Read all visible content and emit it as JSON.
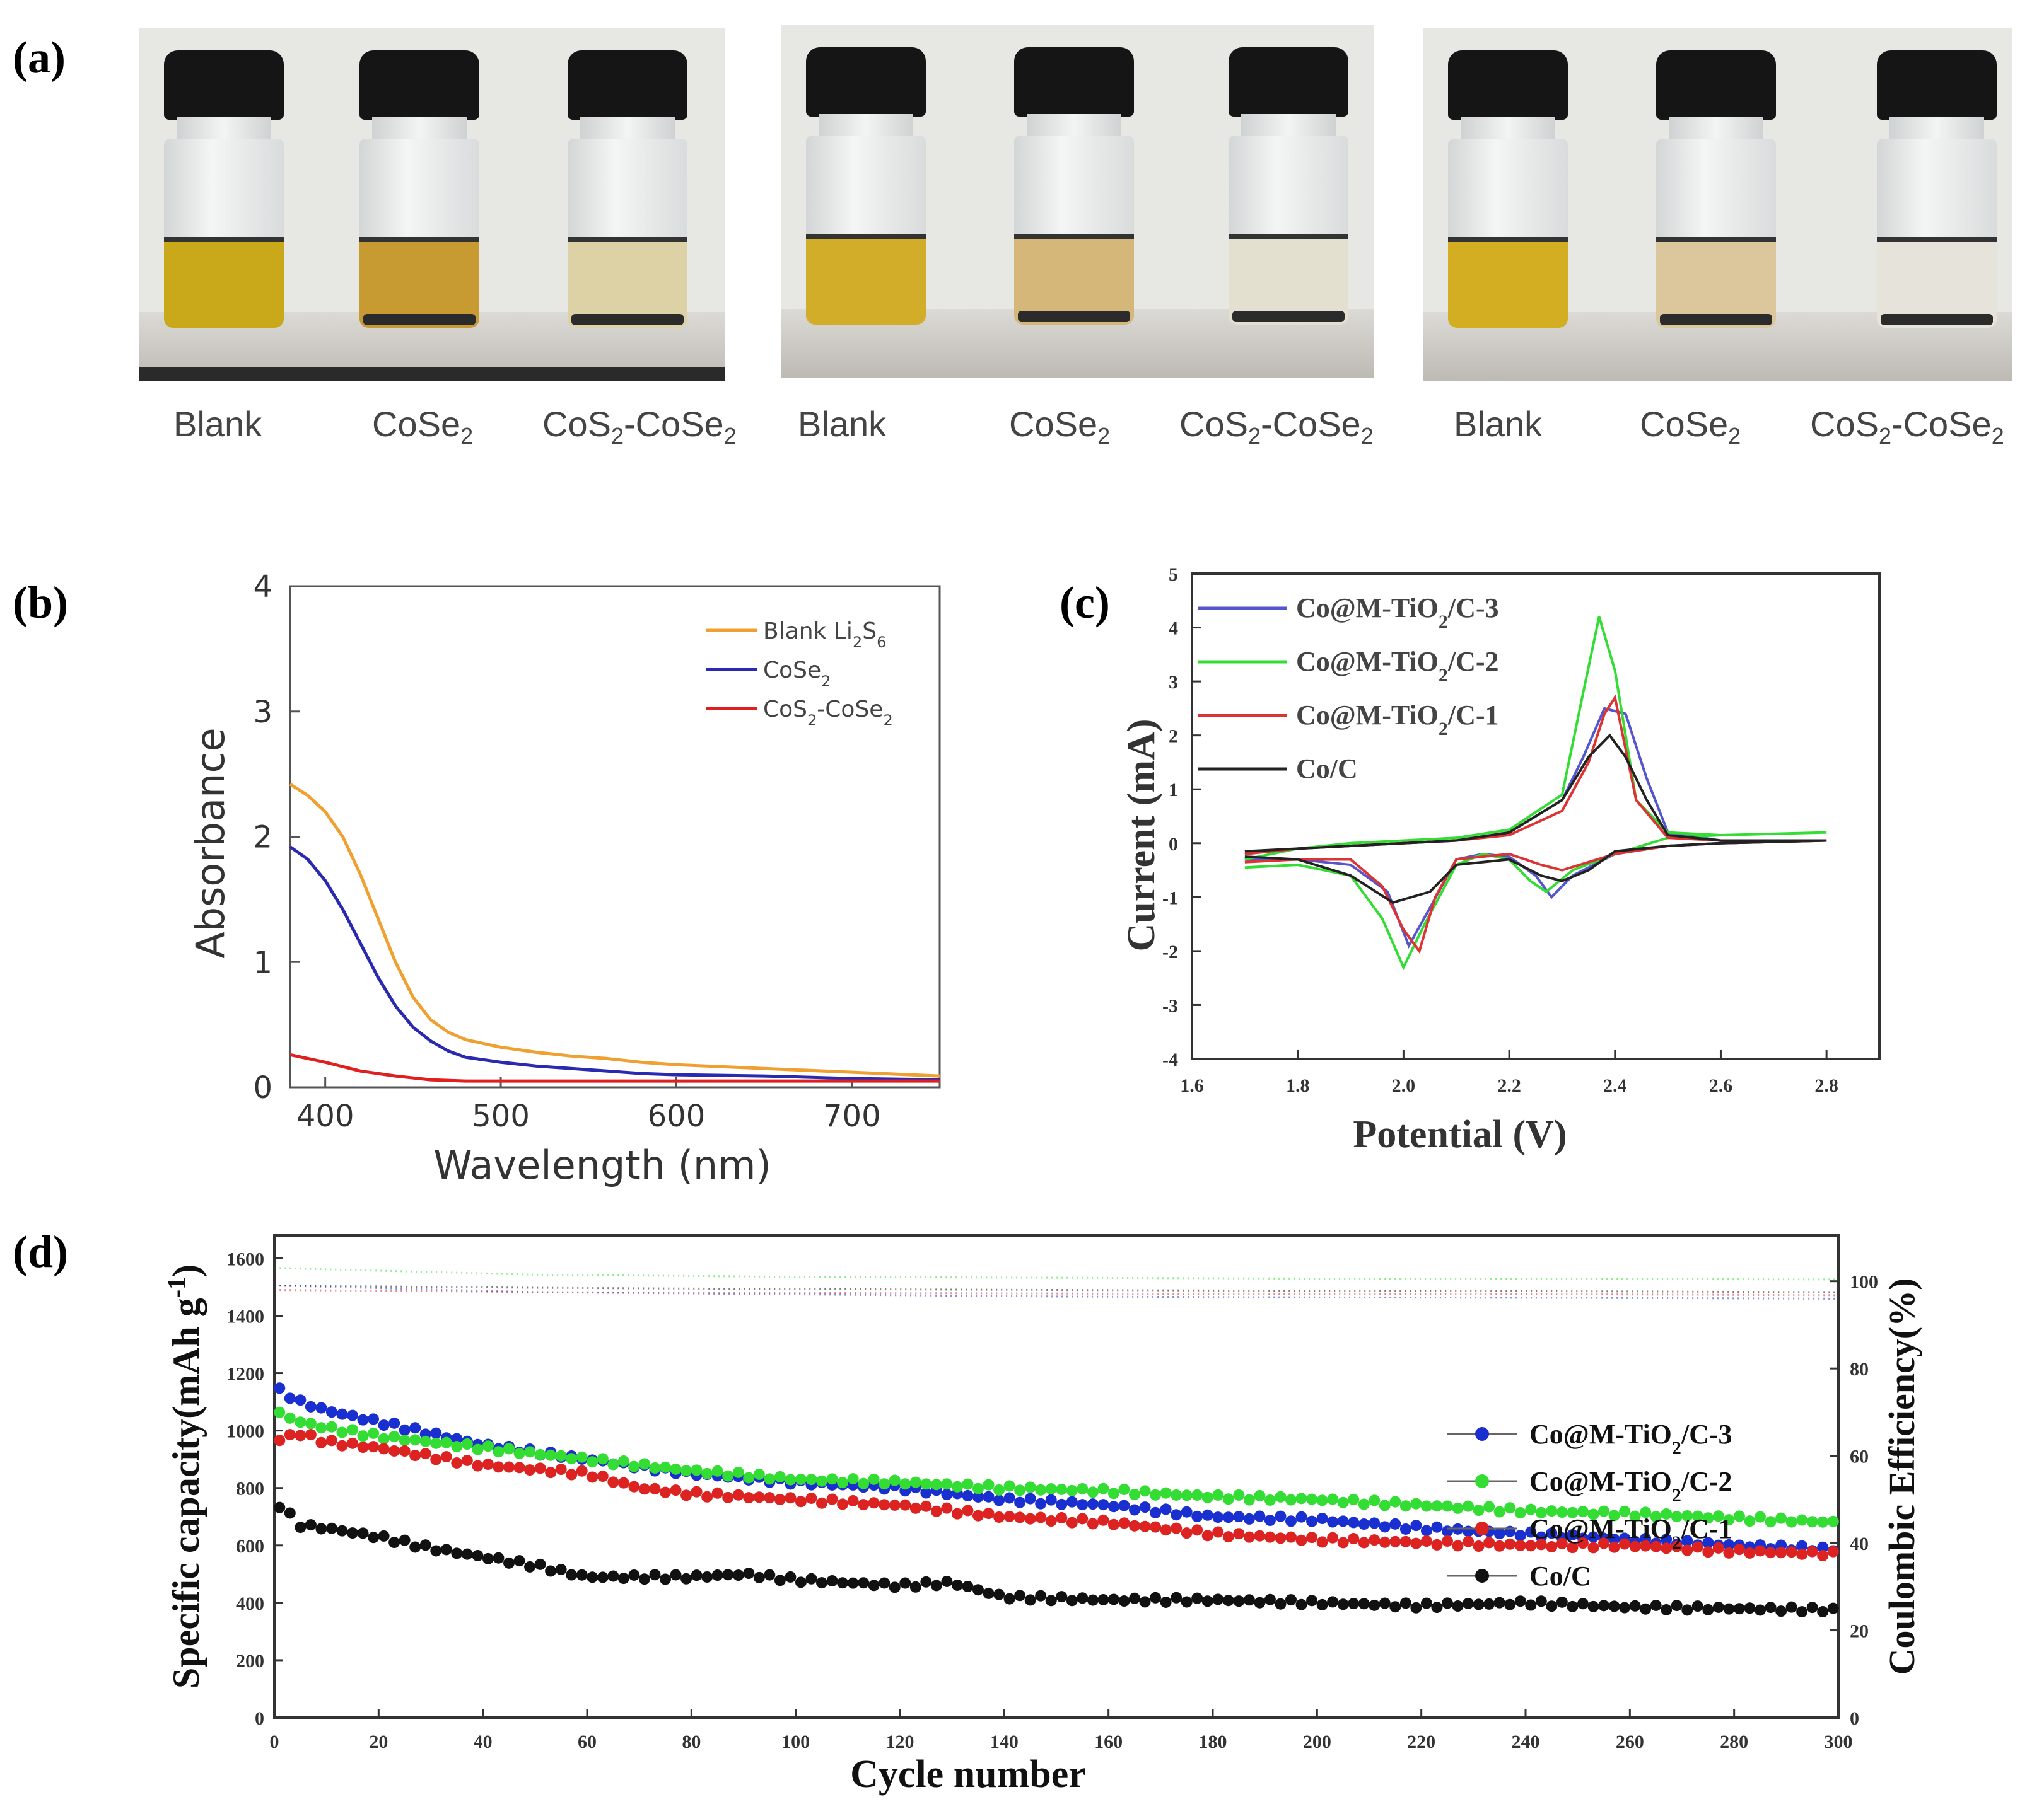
{
  "panel_labels": {
    "a": "(a)",
    "b": "(b)",
    "c": "(c)",
    "d": "(d)"
  },
  "panel_a": {
    "photos": [
      {
        "vials": [
          {
            "label": "Blank",
            "sub": "",
            "tail": "",
            "liquid_color": "#c9a81a",
            "sediment": false
          },
          {
            "label": "CoSe",
            "sub": "2",
            "tail": "",
            "liquid_color": "#c79b32",
            "sediment": true
          },
          {
            "label": "CoS",
            "sub": "2",
            "tail": "-CoSe",
            "sub2": "2",
            "liquid_color": "#ddd2a6",
            "sediment": true
          }
        ]
      },
      {
        "vials": [
          {
            "label": "Blank",
            "sub": "",
            "tail": "",
            "liquid_color": "#d2ad2a",
            "sediment": false
          },
          {
            "label": "CoSe",
            "sub": "2",
            "tail": "",
            "liquid_color": "#d5b77a",
            "sediment": true
          },
          {
            "label": "CoS",
            "sub": "2",
            "tail": "-CoSe",
            "sub2": "2",
            "liquid_color": "#e4e0cf",
            "sediment": true
          }
        ]
      },
      {
        "vials": [
          {
            "label": "Blank",
            "sub": "",
            "tail": "",
            "liquid_color": "#d3ae22",
            "sediment": false
          },
          {
            "label": "CoSe",
            "sub": "2",
            "tail": "",
            "liquid_color": "#dcc79d",
            "sediment": true
          },
          {
            "label": "CoS",
            "sub": "2",
            "tail": "-CoSe",
            "sub2": "2",
            "liquid_color": "#e6e4da",
            "sediment": true
          }
        ]
      }
    ]
  },
  "chart_data": [
    {
      "id": "b",
      "type": "line",
      "xlabel": "Wavelength (nm)",
      "ylabel": "Absorbance",
      "xlim": [
        380,
        750
      ],
      "ylim": [
        0,
        4
      ],
      "xticks": [
        "400",
        "500",
        "600",
        "700"
      ],
      "xtick_values": [
        400,
        500,
        600,
        700
      ],
      "yticks": [
        "0",
        "1",
        "2",
        "3",
        "4"
      ],
      "ytick_values": [
        0,
        1,
        2,
        3,
        4
      ],
      "legend_position": "top-right",
      "series": [
        {
          "name": "Blank Li",
          "sub": "2",
          "mid": "S",
          "sub2": "6",
          "color": "#f0a030",
          "x": [
            380,
            390,
            400,
            410,
            420,
            430,
            440,
            450,
            460,
            470,
            480,
            500,
            520,
            540,
            560,
            580,
            600,
            650,
            700,
            750
          ],
          "y": [
            2.42,
            2.33,
            2.2,
            2.0,
            1.7,
            1.35,
            1.0,
            0.72,
            0.54,
            0.44,
            0.38,
            0.32,
            0.28,
            0.25,
            0.23,
            0.2,
            0.18,
            0.15,
            0.12,
            0.09
          ]
        },
        {
          "name": "CoSe",
          "sub": "2",
          "mid": "",
          "sub2": "",
          "color": "#2a2ab0",
          "x": [
            380,
            390,
            400,
            410,
            420,
            430,
            440,
            450,
            460,
            470,
            480,
            500,
            520,
            540,
            560,
            580,
            600,
            650,
            700,
            750
          ],
          "y": [
            1.92,
            1.82,
            1.65,
            1.42,
            1.15,
            0.88,
            0.65,
            0.48,
            0.37,
            0.29,
            0.24,
            0.2,
            0.17,
            0.15,
            0.13,
            0.11,
            0.1,
            0.09,
            0.07,
            0.06
          ]
        },
        {
          "name": "CoS",
          "sub": "2",
          "mid": "-CoSe",
          "sub2": "2",
          "color": "#e02020",
          "x": [
            380,
            400,
            420,
            440,
            460,
            480,
            500,
            550,
            600,
            650,
            700,
            750
          ],
          "y": [
            0.26,
            0.2,
            0.13,
            0.09,
            0.06,
            0.05,
            0.05,
            0.05,
            0.05,
            0.05,
            0.05,
            0.05
          ]
        }
      ]
    },
    {
      "id": "c",
      "type": "line",
      "xlabel": "Potential (V)",
      "ylabel": "Current (mA)",
      "xlim": [
        1.6,
        2.9
      ],
      "ylim": [
        -4,
        5
      ],
      "xticks": [
        "1.6",
        "1.8",
        "2.0",
        "2.2",
        "2.4",
        "2.6",
        "2.8"
      ],
      "xtick_values": [
        1.6,
        1.8,
        2.0,
        2.2,
        2.4,
        2.6,
        2.8
      ],
      "yticks": [
        "-4",
        "-3",
        "-2",
        "-1",
        "0",
        "1",
        "2",
        "3",
        "4",
        "5"
      ],
      "ytick_values": [
        -4,
        -3,
        -2,
        -1,
        0,
        1,
        2,
        3,
        4,
        5
      ],
      "legend_position": "top-left",
      "series": [
        {
          "name": "Co@M-TiO",
          "sub": "2",
          "tail": "/C-3",
          "color": "#5555cc",
          "x": [
            1.7,
            1.8,
            1.9,
            1.97,
            2.01,
            2.05,
            2.1,
            2.15,
            2.2,
            2.25,
            2.28,
            2.32,
            2.4,
            2.5,
            2.6,
            2.8,
            2.8,
            2.6,
            2.5,
            2.46,
            2.42,
            2.38,
            2.34,
            2.3,
            2.2,
            2.1,
            2.0,
            1.9,
            1.8,
            1.7
          ],
          "y": [
            -0.3,
            -0.3,
            -0.4,
            -0.9,
            -1.9,
            -1.2,
            -0.3,
            -0.2,
            -0.25,
            -0.6,
            -1.0,
            -0.6,
            -0.2,
            -0.05,
            0.0,
            0.05,
            0.05,
            0.05,
            0.2,
            1.2,
            2.4,
            2.5,
            1.6,
            0.8,
            0.2,
            0.05,
            0.0,
            -0.05,
            -0.1,
            -0.2
          ]
        },
        {
          "name": "Co@M-TiO",
          "sub": "2",
          "tail": "/C-2",
          "color": "#33dd33",
          "x": [
            1.7,
            1.8,
            1.9,
            1.96,
            2.0,
            2.04,
            2.1,
            2.15,
            2.2,
            2.24,
            2.27,
            2.32,
            2.4,
            2.5,
            2.6,
            2.8,
            2.8,
            2.6,
            2.5,
            2.44,
            2.4,
            2.37,
            2.34,
            2.3,
            2.2,
            2.1,
            2.0,
            1.9,
            1.8,
            1.7
          ],
          "y": [
            -0.45,
            -0.4,
            -0.6,
            -1.4,
            -2.3,
            -1.5,
            -0.4,
            -0.2,
            -0.3,
            -0.7,
            -0.9,
            -0.5,
            -0.2,
            0.1,
            0.15,
            0.2,
            0.2,
            0.15,
            0.2,
            0.8,
            3.2,
            4.2,
            2.8,
            0.9,
            0.25,
            0.1,
            0.05,
            0.0,
            -0.1,
            -0.3
          ]
        },
        {
          "name": "Co@M-TiO",
          "sub": "2",
          "tail": "/C-1",
          "color": "#dd3333",
          "x": [
            1.7,
            1.8,
            1.9,
            1.96,
            2.0,
            2.03,
            2.06,
            2.1,
            2.2,
            2.26,
            2.3,
            2.4,
            2.5,
            2.6,
            2.8,
            2.8,
            2.6,
            2.5,
            2.44,
            2.4,
            2.38,
            2.35,
            2.3,
            2.2,
            2.1,
            2.0,
            1.9,
            1.8,
            1.7
          ],
          "y": [
            -0.35,
            -0.3,
            -0.3,
            -0.8,
            -1.6,
            -2.0,
            -1.0,
            -0.3,
            -0.2,
            -0.4,
            -0.5,
            -0.2,
            -0.05,
            0.0,
            0.05,
            0.05,
            0.05,
            0.1,
            0.8,
            2.7,
            2.4,
            1.5,
            0.6,
            0.15,
            0.05,
            0.0,
            -0.05,
            -0.1,
            -0.2
          ]
        },
        {
          "name": "Co/C",
          "sub": "",
          "tail": "",
          "color": "#222222",
          "x": [
            1.7,
            1.8,
            1.9,
            1.98,
            2.05,
            2.1,
            2.2,
            2.26,
            2.3,
            2.35,
            2.4,
            2.5,
            2.6,
            2.8,
            2.8,
            2.6,
            2.5,
            2.46,
            2.42,
            2.39,
            2.35,
            2.3,
            2.2,
            2.1,
            2.0,
            1.9,
            1.8,
            1.7
          ],
          "y": [
            -0.25,
            -0.3,
            -0.6,
            -1.1,
            -0.9,
            -0.4,
            -0.3,
            -0.6,
            -0.7,
            -0.5,
            -0.15,
            -0.05,
            0.0,
            0.05,
            0.05,
            0.05,
            0.15,
            0.8,
            1.6,
            2.0,
            1.6,
            0.8,
            0.2,
            0.05,
            0.0,
            -0.05,
            -0.1,
            -0.15
          ]
        }
      ]
    },
    {
      "id": "d",
      "type": "scatter",
      "xlabel": "Cycle number",
      "ylabel": "Specific capacity(mAh g",
      "ylabel_sup": "-1",
      "ylabel_tail": ")",
      "y2label": "Coulombic Efficiency(%)",
      "xlim": [
        0,
        300
      ],
      "ylim": [
        0,
        1680
      ],
      "y2lim": [
        0,
        110.5
      ],
      "xticks": [
        "0",
        "20",
        "40",
        "60",
        "80",
        "100",
        "120",
        "140",
        "160",
        "180",
        "200",
        "220",
        "240",
        "260",
        "280",
        "300"
      ],
      "xtick_values": [
        0,
        20,
        40,
        60,
        80,
        100,
        120,
        140,
        160,
        180,
        200,
        220,
        240,
        260,
        280,
        300
      ],
      "yticks": [
        "0",
        "200",
        "400",
        "600",
        "800",
        "1000",
        "1200",
        "1400",
        "1600"
      ],
      "ytick_values": [
        0,
        200,
        400,
        600,
        800,
        1000,
        1200,
        1400,
        1600
      ],
      "y2ticks": [
        "0",
        "20",
        "40",
        "60",
        "80",
        "100"
      ],
      "y2tick_values": [
        0,
        20,
        40,
        60,
        80,
        100
      ],
      "legend_position": "right",
      "series": [
        {
          "name": "Co@M-TiO",
          "sub": "2",
          "tail": "/C-3",
          "color": "#1a2fd0",
          "x": [
            1,
            5,
            10,
            20,
            40,
            60,
            80,
            100,
            120,
            140,
            160,
            180,
            200,
            220,
            240,
            260,
            280,
            300
          ],
          "y": [
            1140,
            1100,
            1070,
            1030,
            950,
            900,
            850,
            820,
            800,
            760,
            740,
            700,
            690,
            660,
            640,
            620,
            600,
            585
          ],
          "ce_x": [
            1,
            50,
            100,
            150,
            200,
            250,
            300
          ],
          "ce_y": [
            99,
            97.5,
            97,
            96.5,
            96.3,
            96.2,
            96
          ]
        },
        {
          "name": "Co@M-TiO",
          "sub": "2",
          "tail": "/C-2",
          "color": "#33dd33",
          "x": [
            1,
            5,
            10,
            20,
            40,
            60,
            80,
            100,
            120,
            140,
            160,
            180,
            200,
            220,
            240,
            260,
            280,
            300
          ],
          "y": [
            1060,
            1030,
            1010,
            980,
            940,
            900,
            860,
            830,
            820,
            800,
            790,
            770,
            760,
            740,
            720,
            710,
            695,
            680
          ],
          "ce_x": [
            1,
            50,
            100,
            150,
            200,
            250,
            300
          ],
          "ce_y": [
            103,
            101.5,
            101,
            100.8,
            100.6,
            100.5,
            100.4
          ]
        },
        {
          "name": "Co@M-TiO",
          "sub": "2",
          "tail": "/C-1",
          "color": "#dd2222",
          "x": [
            1,
            5,
            10,
            20,
            40,
            60,
            70,
            80,
            100,
            120,
            140,
            160,
            180,
            200,
            220,
            240,
            260,
            280,
            300
          ],
          "y": [
            970,
            990,
            960,
            940,
            880,
            850,
            800,
            780,
            760,
            740,
            700,
            680,
            640,
            620,
            610,
            600,
            600,
            580,
            570
          ],
          "ce_x": [
            1,
            50,
            100,
            150,
            200,
            250,
            300
          ],
          "ce_y": [
            98,
            97.5,
            97.3,
            97.2,
            97.0,
            97.0,
            96.8
          ]
        },
        {
          "name": "Co/C",
          "sub": "",
          "tail": "",
          "color": "#111111",
          "x": [
            1,
            5,
            10,
            20,
            30,
            40,
            50,
            60,
            80,
            90,
            100,
            120,
            130,
            140,
            160,
            180,
            200,
            220,
            240,
            260,
            280,
            300
          ],
          "y": [
            740,
            670,
            660,
            630,
            590,
            560,
            530,
            490,
            490,
            500,
            480,
            460,
            470,
            420,
            410,
            410,
            400,
            390,
            400,
            385,
            380,
            375
          ],
          "ce_x": [
            1,
            50,
            100,
            150,
            200,
            250,
            300
          ],
          "ce_y": [
            99,
            98.5,
            98.2,
            98.0,
            97.8,
            97.7,
            97.5
          ]
        }
      ]
    }
  ]
}
